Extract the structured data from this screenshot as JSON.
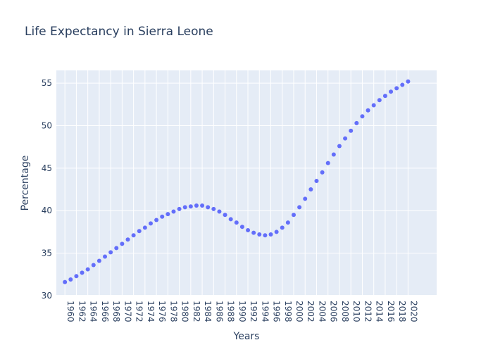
{
  "chart_data": {
    "type": "scatter",
    "title": "Life Expectancy in Sierra Leone",
    "xlabel": "Years",
    "ylabel": "Percentage",
    "xlim": [
      1958.5,
      2025
    ],
    "ylim": [
      30,
      56.5
    ],
    "x_ticks": [
      1960,
      1962,
      1964,
      1966,
      1968,
      1970,
      1972,
      1974,
      1976,
      1978,
      1980,
      1982,
      1984,
      1986,
      1988,
      1990,
      1992,
      1994,
      1996,
      1998,
      2000,
      2002,
      2004,
      2006,
      2008,
      2010,
      2012,
      2014,
      2016,
      2018,
      2020
    ],
    "y_ticks": [
      30,
      35,
      40,
      45,
      50,
      55
    ],
    "grid": true,
    "marker_color": "#636efa",
    "plot_bgcolor": "#e5ecf6",
    "x": [
      1960,
      1961,
      1962,
      1963,
      1964,
      1965,
      1966,
      1967,
      1968,
      1969,
      1970,
      1971,
      1972,
      1973,
      1974,
      1975,
      1976,
      1977,
      1978,
      1979,
      1980,
      1981,
      1982,
      1983,
      1984,
      1985,
      1986,
      1987,
      1988,
      1989,
      1990,
      1991,
      1992,
      1993,
      1994,
      1995,
      1996,
      1997,
      1998,
      1999,
      2000,
      2001,
      2002,
      2003,
      2004,
      2005,
      2006,
      2007,
      2008,
      2009,
      2010,
      2011,
      2012,
      2013,
      2014,
      2015,
      2016,
      2017,
      2018,
      2019,
      2020
    ],
    "y": [
      31.6,
      31.9,
      32.3,
      32.7,
      33.1,
      33.6,
      34.1,
      34.6,
      35.1,
      35.6,
      36.1,
      36.6,
      37.1,
      37.6,
      38.0,
      38.5,
      38.9,
      39.3,
      39.6,
      39.9,
      40.2,
      40.4,
      40.5,
      40.6,
      40.6,
      40.4,
      40.2,
      39.9,
      39.5,
      39.0,
      38.6,
      38.1,
      37.7,
      37.4,
      37.2,
      37.1,
      37.2,
      37.5,
      38.0,
      38.6,
      39.5,
      40.4,
      41.4,
      42.5,
      43.5,
      44.5,
      45.6,
      46.6,
      47.6,
      48.5,
      49.4,
      50.3,
      51.1,
      51.8,
      52.4,
      53.0,
      53.5,
      54.0,
      54.4,
      54.8,
      55.2
    ]
  }
}
